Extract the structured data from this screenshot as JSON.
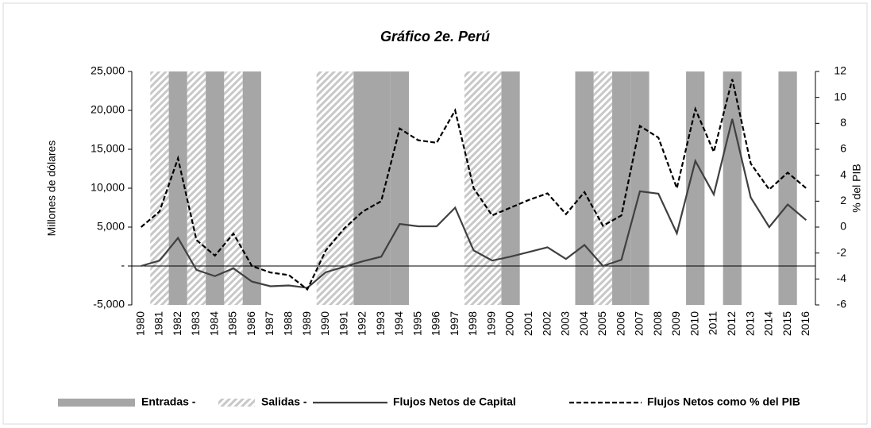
{
  "chart_data": {
    "type": "combo",
    "title": "Gráfico 2e. Perú",
    "ylabel": "Millones de dólares",
    "y2label": "% del PIB",
    "categories": [
      "1980",
      "1981",
      "1982",
      "1983",
      "1984",
      "1985",
      "1986",
      "1987",
      "1988",
      "1989",
      "1990",
      "1991",
      "1992",
      "1993",
      "1994",
      "1995",
      "1996",
      "1997",
      "1998",
      "1999",
      "2000",
      "2001",
      "2002",
      "2003",
      "2004",
      "2005",
      "2006",
      "2007",
      "2008",
      "2009",
      "2010",
      "2011",
      "2012",
      "2013",
      "2014",
      "2015",
      "2016"
    ],
    "regimes": [
      {
        "name": "Entradas -",
        "color": "#a6a6a6",
        "pattern": "solid",
        "categories": [
          "1982",
          "1984",
          "1986",
          "1992",
          "1993",
          "1994",
          "2000",
          "2004",
          "2006",
          "2007",
          "2010",
          "2012",
          "2015"
        ]
      },
      {
        "name": "Salidas -",
        "color": "#c8c8c8",
        "pattern": "hatch",
        "categories": [
          "1981",
          "1983",
          "1985",
          "1990",
          "1991",
          "1998",
          "1999",
          "2005"
        ]
      }
    ],
    "series": [
      {
        "name": "Flujos Netos de Capital",
        "color": "#404040",
        "dash": "solid",
        "axis": "y",
        "values": [
          0,
          700,
          3600,
          -500,
          -1300,
          -300,
          -2000,
          -2600,
          -2500,
          -2800,
          -800,
          -100,
          600,
          1200,
          5400,
          5100,
          5100,
          7500,
          2000,
          700,
          1200,
          1800,
          2400,
          900,
          2700,
          0,
          800,
          9600,
          9300,
          4200,
          13500,
          9200,
          18900,
          8800,
          5000,
          7900,
          5900
        ]
      },
      {
        "name": "Flujos Netos como % del PIB",
        "color": "#000000",
        "dash": "dashed",
        "axis": "y2",
        "values": [
          0,
          1.2,
          5.3,
          -1,
          -2.2,
          -0.5,
          -3,
          -3.5,
          -3.7,
          -4.8,
          -1.8,
          -0.1,
          1.2,
          2,
          7.6,
          6.7,
          6.5,
          9,
          3,
          0.9,
          1.5,
          2.1,
          2.6,
          1,
          2.7,
          0.1,
          0.9,
          7.8,
          6.9,
          3,
          9.1,
          5.8,
          11.4,
          4.9,
          2.9,
          4.2,
          3
        ]
      }
    ],
    "ylim": [
      -5000,
      25000
    ],
    "yticks": [
      {
        "value": -5000,
        "label": "-5,000"
      },
      {
        "value": 0,
        "label": "-"
      },
      {
        "value": 5000,
        "label": "5,000"
      },
      {
        "value": 10000,
        "label": "10,000"
      },
      {
        "value": 15000,
        "label": "15,000"
      },
      {
        "value": 20000,
        "label": "20,000"
      },
      {
        "value": 25000,
        "label": "25,000"
      }
    ],
    "y2lim": [
      -6,
      12
    ],
    "y2ticks": [
      -6,
      -4,
      -2,
      0,
      2,
      4,
      6,
      8,
      10,
      12
    ],
    "legend": "bottom"
  }
}
